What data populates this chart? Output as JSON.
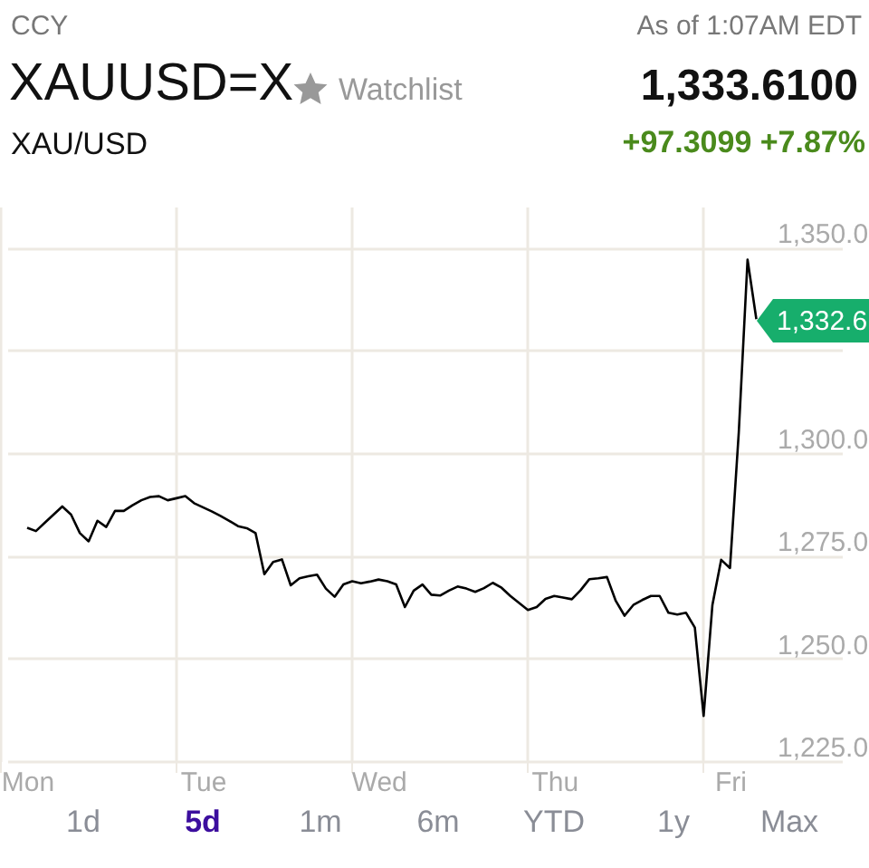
{
  "chart_data": {
    "type": "line",
    "title": "XAUUSD=X",
    "subtitle": "XAU/USD",
    "annotations": [
      "CCY",
      "As of 1:07AM EDT",
      "Watchlist",
      "1,333.6100",
      "+97.3099 +7.87%",
      "1d",
      "5d",
      "1m",
      "6m",
      "YTD",
      "1y",
      "Max",
      "1,332.6"
    ],
    "categories": [
      "Mon",
      null,
      null,
      null,
      null,
      null,
      null,
      null,
      null,
      null,
      null,
      null,
      null,
      null,
      null,
      null,
      null,
      null,
      null,
      null,
      "Tue",
      null,
      null,
      null,
      null,
      null,
      null,
      null,
      null,
      null,
      null,
      null,
      null,
      null,
      null,
      null,
      null,
      null,
      null,
      null,
      "Wed",
      null,
      null,
      null,
      null,
      null,
      null,
      null,
      null,
      null,
      null,
      null,
      null,
      null,
      null,
      null,
      null,
      null,
      null,
      null,
      "Thu",
      null,
      null,
      null,
      null,
      null,
      null,
      null,
      null,
      null,
      null,
      null,
      null,
      null,
      null,
      null,
      null,
      null,
      null,
      null,
      "Fri",
      null,
      null,
      null,
      null,
      null,
      null,
      null,
      null,
      null,
      null,
      null,
      null,
      null,
      null,
      null
    ],
    "ylim": [
      1225,
      1360
    ],
    "yticks": [
      {
        "value": 1225,
        "label": "1,225.0"
      },
      {
        "value": 1250,
        "label": "1,250.0"
      },
      {
        "value": 1275,
        "label": "1,275.0"
      },
      {
        "value": 1300,
        "label": "1,300.0"
      },
      {
        "value": 1325,
        "label": null
      },
      {
        "value": 1350,
        "label": "1,350.0"
      }
    ],
    "grid": true,
    "series": [
      {
        "color": "#000000",
        "values": [
          1281.8,
          1281.0,
          1283.0,
          1285.0,
          1287.0,
          1285.0,
          1280.5,
          1278.5,
          1283.5,
          1282.0,
          1285.9,
          1285.9,
          1287.3,
          1288.5,
          1289.3,
          1289.5,
          1288.5,
          1289.0,
          1289.5,
          1287.8,
          1286.8,
          1285.8,
          1284.7,
          1283.5,
          1282.2,
          1281.7,
          1280.5,
          1270.5,
          1273.5,
          1274.1,
          1267.8,
          1269.5,
          1270.0,
          1270.4,
          1267.0,
          1265.0,
          1268.0,
          1268.8,
          1268.3,
          1268.7,
          1269.2,
          1268.8,
          1268.0,
          1262.5,
          1266.5,
          1268.0,
          1265.5,
          1265.3,
          1266.5,
          1267.5,
          1267.0,
          1266.2,
          1267.1,
          1268.4,
          1267.2,
          1265.2,
          1263.5,
          1261.8,
          1262.5,
          1264.5,
          1265.2,
          1264.8,
          1264.4,
          1266.6,
          1269.3,
          1269.5,
          1269.8,
          1264.0,
          1260.4,
          1263.0,
          1264.2,
          1265.2,
          1265.2,
          1261.1,
          1260.7,
          1261.1,
          1257.5,
          1236.0,
          1263.0,
          1274.0,
          1272.0,
          1305.0,
          1347.1,
          1332.6,
          null,
          null,
          null,
          null,
          null,
          null,
          null,
          null,
          null,
          null,
          null,
          null
        ]
      }
    ]
  }
}
